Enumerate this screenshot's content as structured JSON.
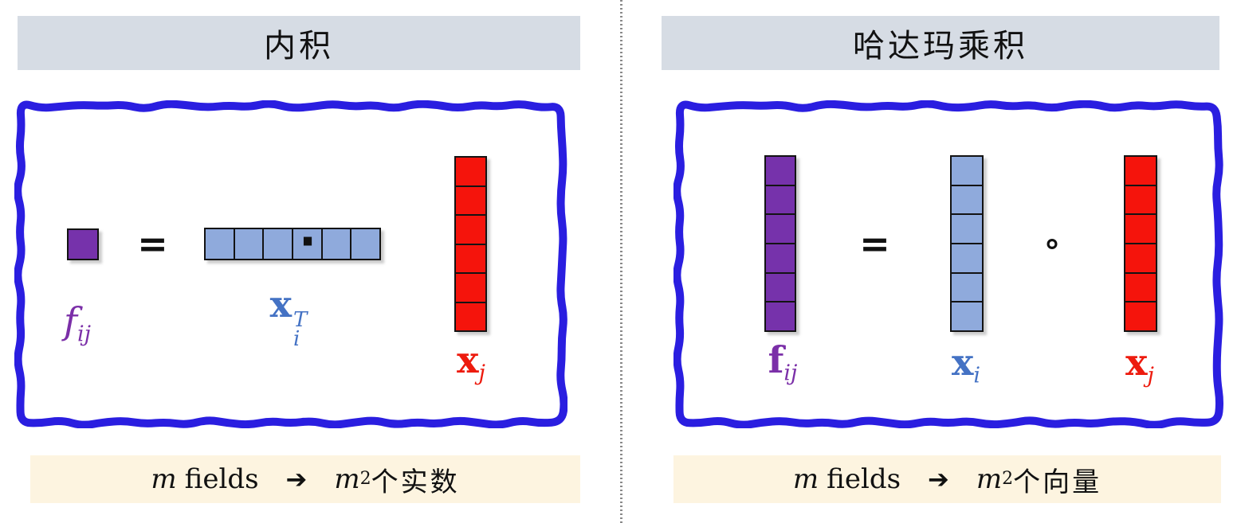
{
  "colors": {
    "header_bg": "#D6DCE4",
    "footer_bg": "#FDF4E0",
    "box_border": "#2A1EE0",
    "divider": "#8A8A8A",
    "purple_fill": "#7632AB",
    "blue_fill": "#8FAADC",
    "red_fill": "#F5140C",
    "purple_label": "#7B2FA8",
    "blue_label": "#4472C4",
    "red_label": "#ED1B0E",
    "operator_color": "#111111"
  },
  "panels": [
    {
      "title": "内积",
      "result": {
        "cells": 1,
        "color": "#7632AB",
        "label_base": "f",
        "label_sub": "ij",
        "label_color": "#7B2FA8"
      },
      "equals": "=",
      "operand1": {
        "cells": 6,
        "color": "#8FAADC",
        "label_base": "x",
        "label_sup": "T",
        "label_sub": "i",
        "label_color": "#4472C4"
      },
      "operator": "·",
      "operand2": {
        "cells": 6,
        "color": "#F5140C",
        "label_base": "x",
        "label_sub": "j",
        "label_color": "#ED1B0E"
      },
      "footer": {
        "var1": "m",
        "text1": "fields",
        "arrow": "➔",
        "var2": "m",
        "exp": "2",
        "suffix": "个实数"
      }
    },
    {
      "title": "哈达玛乘积",
      "result": {
        "cells": 6,
        "color": "#7632AB",
        "label_base": "f",
        "label_sub": "ij",
        "label_color": "#7B2FA8"
      },
      "equals": "=",
      "operand1": {
        "cells": 6,
        "color": "#8FAADC",
        "label_base": "x",
        "label_sub": "i",
        "label_color": "#4472C4"
      },
      "operator": "∘",
      "operand2": {
        "cells": 6,
        "color": "#F5140C",
        "label_base": "x",
        "label_sub": "j",
        "label_color": "#ED1B0E"
      },
      "footer": {
        "var1": "m",
        "text1": "fields",
        "arrow": "➔",
        "var2": "m",
        "exp": "2",
        "suffix": "个向量"
      }
    }
  ]
}
